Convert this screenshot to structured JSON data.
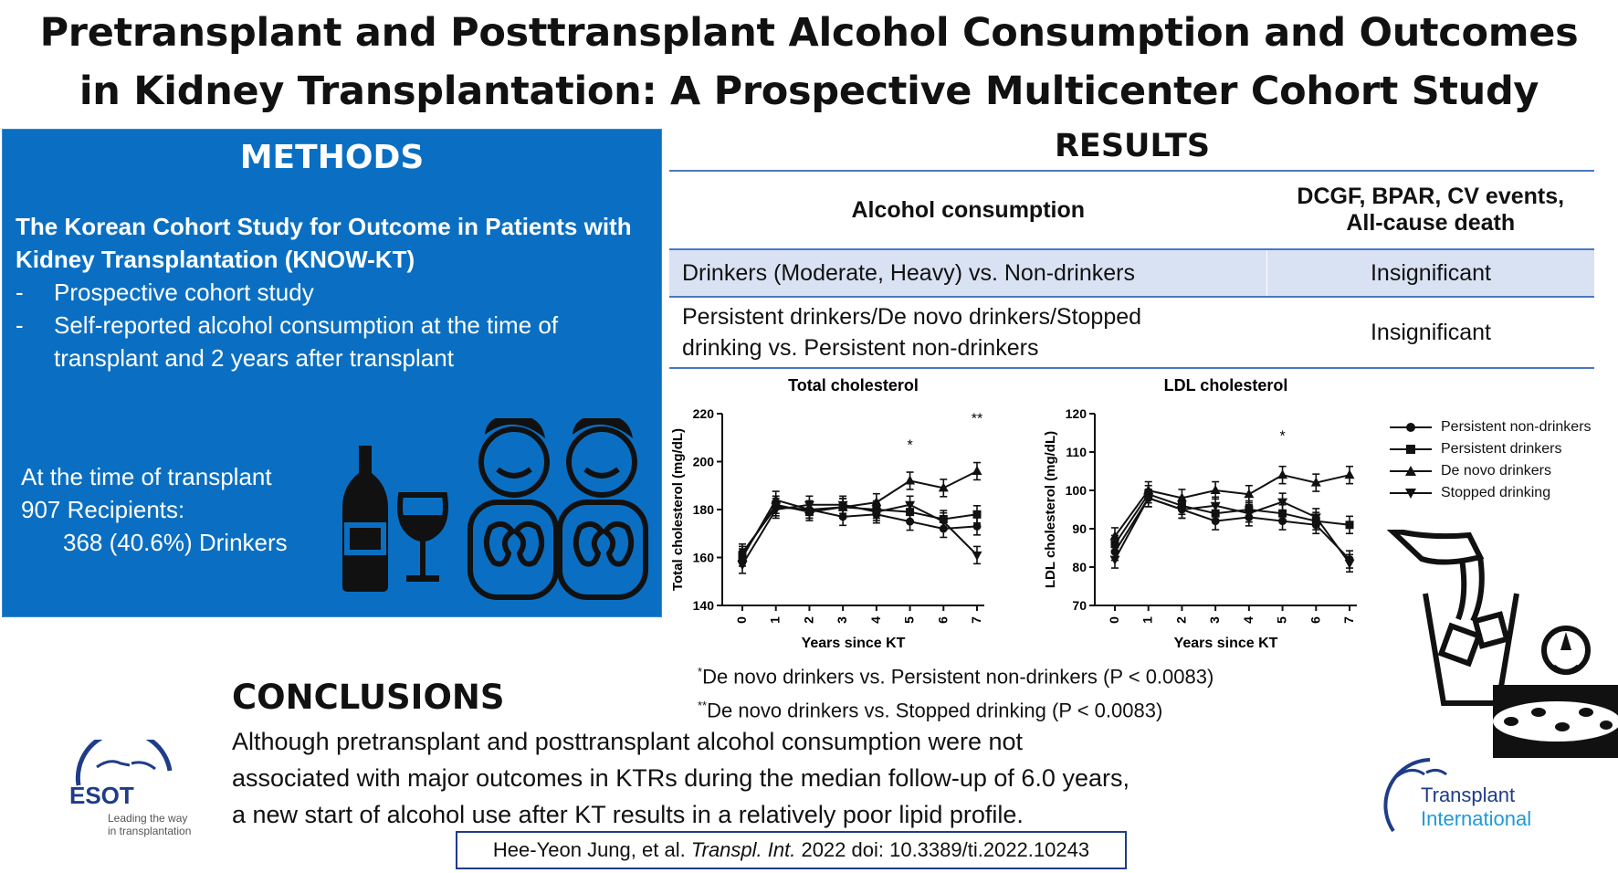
{
  "title": {
    "line1": "Pretransplant and Posttransplant Alcohol Consumption and Outcomes",
    "line2": "in Kidney Transplantation: A Prospective Multicenter Cohort Study"
  },
  "methods": {
    "heading": "METHODS",
    "cohort_line1": "The Korean Cohort Study for Outcome in Patients with",
    "cohort_line2": "Kidney Transplantation (KNOW-KT)",
    "bullets": [
      {
        "dash": "-",
        "text": "Prospective cohort study"
      },
      {
        "dash": "-",
        "text": "Self-reported alcohol consumption at the time of transplant and 2 years after transplant"
      }
    ],
    "time_line1": "At the time of transplant",
    "time_line2": "907 Recipients:",
    "time_line3": "368 (40.6%) Drinkers"
  },
  "results": {
    "heading": "RESULTS",
    "col1_header": "Alcohol consumption",
    "col2_header_line1": "DCGF, BPAR, CV events,",
    "col2_header_line2": "All-cause death",
    "rows": [
      {
        "label": "Drinkers (Moderate, Heavy) vs. Non-drinkers",
        "value": "Insignificant"
      },
      {
        "label_line1": "Persistent drinkers/De novo drinkers/Stopped",
        "label_line2": "drinking vs. Persistent non-drinkers",
        "value": "Insignificant"
      }
    ]
  },
  "chart_data": [
    {
      "type": "line",
      "title": "Total cholesterol",
      "xlabel": "Years since KT",
      "ylabel": "Total cholesterol (mg/dL)",
      "ylim": [
        140,
        220
      ],
      "yticks": [
        "140",
        "160",
        "180",
        "200",
        "220"
      ],
      "x": [
        0,
        1,
        2,
        3,
        4,
        5,
        6,
        7
      ],
      "xticks": [
        "0",
        "1",
        "2",
        "3",
        "4",
        "5",
        "6",
        "7"
      ],
      "annotations": [
        {
          "x": 5,
          "y": 205,
          "text": "*"
        },
        {
          "x": 7,
          "y": 216,
          "text": "**"
        }
      ],
      "series": [
        {
          "name": "Persistent non-drinkers",
          "marker": "circle",
          "values": [
            162,
            181,
            180,
            177,
            178,
            175,
            172,
            173
          ]
        },
        {
          "name": "Persistent drinkers",
          "marker": "square",
          "values": [
            161,
            182,
            179,
            181,
            180,
            179,
            176,
            178
          ]
        },
        {
          "name": "De novo drinkers",
          "marker": "triangle-up",
          "values": [
            160,
            184,
            180,
            181,
            183,
            192,
            189,
            196
          ]
        },
        {
          "name": "Stopped drinking",
          "marker": "triangle-down",
          "values": [
            157,
            180,
            182,
            182,
            179,
            182,
            175,
            161
          ]
        }
      ]
    },
    {
      "type": "line",
      "title": "LDL cholesterol",
      "xlabel": "Years since KT",
      "ylabel": "LDL cholesterol (mg/dL)",
      "ylim": [
        70,
        120
      ],
      "yticks": [
        "70",
        "80",
        "90",
        "100",
        "110",
        "120"
      ],
      "x": [
        0,
        1,
        2,
        3,
        4,
        5,
        6,
        7
      ],
      "xticks": [
        "0",
        "1",
        "2",
        "3",
        "4",
        "5",
        "6",
        "7"
      ],
      "annotations": [
        {
          "x": 5,
          "y": 113,
          "text": "*"
        }
      ],
      "series": [
        {
          "name": "Persistent non-drinkers",
          "marker": "circle",
          "values": [
            84,
            98,
            95,
            92,
            93,
            92,
            91,
            82
          ]
        },
        {
          "name": "Persistent drinkers",
          "marker": "square",
          "values": [
            86,
            99,
            96,
            94,
            95,
            94,
            92,
            91
          ]
        },
        {
          "name": "De novo drinkers",
          "marker": "triangle-up",
          "values": [
            88,
            100,
            98,
            100,
            99,
            104,
            102,
            104
          ]
        },
        {
          "name": "Stopped drinking",
          "marker": "triangle-down",
          "values": [
            82,
            98,
            95,
            96,
            94,
            97,
            93,
            81
          ]
        }
      ]
    }
  ],
  "notes": {
    "note1_mark": "*",
    "note1": "De novo drinkers vs. Persistent non-drinkers (P < 0.0083)",
    "note2_mark": "**",
    "note2": "De novo drinkers vs. Stopped drinking (P < 0.0083)"
  },
  "conclusions": {
    "heading": "CONCLUSIONS",
    "line1": "Although pretransplant and posttransplant alcohol consumption were not",
    "line2": "associated with major outcomes in KTRs during the median follow-up of 6.0 years,",
    "line3": "a new start of alcohol use after KT results in a relatively poor lipid profile."
  },
  "citation": {
    "authors": "Hee-Yeon Jung, et al. ",
    "journal": "Transpl. Int.",
    "rest": " 2022 doi: 10.3389/ti.2022.10243"
  },
  "logos": {
    "esot_name": "ESOT",
    "esot_tag1": "Leading the way",
    "esot_tag2": "in transplantation",
    "ti_line1": "Transplant",
    "ti_line2": "International"
  },
  "colors": {
    "methods_bg": "#0a6fc2",
    "table_rule": "#4a78c0",
    "row_highlight": "#d9e2f3",
    "logo_blue": "#1f3c88"
  }
}
